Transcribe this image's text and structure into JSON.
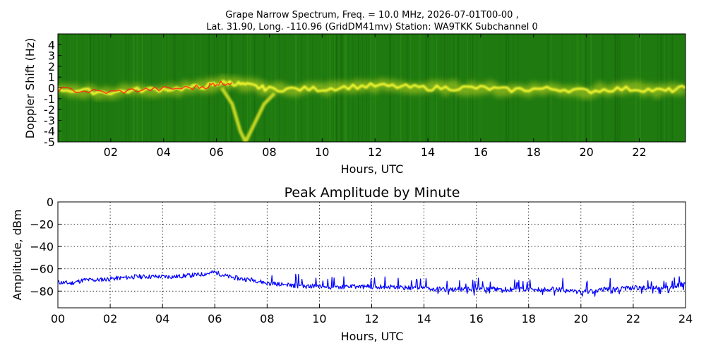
{
  "chart_data": [
    {
      "type": "heatmap",
      "title_line1": "Grape Narrow Spectrum, Freq. = 10.0 MHz, 2026-07-01T00-00 ,",
      "title_line2": "Lat.  31.90, Long. -110.96 (GridDM41mv) Station: WA9TKK Subchannel 0",
      "xlabel": "Hours, UTC",
      "ylabel": "Doppler Shift (Hz)",
      "xlim": [
        0,
        23.75
      ],
      "ylim": [
        -5,
        5
      ],
      "x_ticks": [
        "02",
        "04",
        "06",
        "08",
        "10",
        "12",
        "14",
        "16",
        "18",
        "20",
        "22"
      ],
      "y_ticks": [
        "-5",
        "-4",
        "-3",
        "-2",
        "-1",
        "0",
        "1",
        "2",
        "3",
        "4"
      ],
      "colors": {
        "background": "#1f7a10",
        "low": "#2e8f16",
        "mid": "#c8d820",
        "high": "#ffff30",
        "peak": "#ff2010"
      },
      "trace": [
        [
          0.0,
          -0.1
        ],
        [
          1.0,
          -0.3
        ],
        [
          2.0,
          -0.4
        ],
        [
          3.0,
          -0.2
        ],
        [
          4.0,
          -0.1
        ],
        [
          5.0,
          0.0
        ],
        [
          5.7,
          0.2
        ],
        [
          6.0,
          0.4
        ],
        [
          6.5,
          0.5
        ],
        [
          7.0,
          0.3
        ],
        [
          7.5,
          0.1
        ],
        [
          8.0,
          -0.1
        ],
        [
          9.0,
          -0.1
        ],
        [
          10.0,
          -0.1
        ],
        [
          11.0,
          0.1
        ],
        [
          12.0,
          0.2
        ],
        [
          13.0,
          0.1
        ],
        [
          14.0,
          0.0
        ],
        [
          15.0,
          0.0
        ],
        [
          16.0,
          0.0
        ],
        [
          17.0,
          -0.2
        ],
        [
          18.0,
          -0.1
        ],
        [
          19.0,
          -0.1
        ],
        [
          20.0,
          -0.3
        ],
        [
          21.0,
          -0.1
        ],
        [
          22.0,
          -0.1
        ],
        [
          23.0,
          -0.3
        ],
        [
          23.75,
          0.0
        ]
      ],
      "dip": [
        [
          6.2,
          0.0
        ],
        [
          6.6,
          -1.5
        ],
        [
          6.9,
          -4.0
        ],
        [
          7.1,
          -5.0
        ],
        [
          7.4,
          -3.5
        ],
        [
          7.8,
          -1.5
        ],
        [
          8.2,
          -0.5
        ]
      ]
    },
    {
      "type": "line",
      "title": "Peak Amplitude by Minute",
      "xlabel": "Hours, UTC",
      "ylabel": "Amplitude, dBm",
      "xlim": [
        0,
        24
      ],
      "ylim": [
        -95,
        0
      ],
      "grid": true,
      "x_ticks": [
        "00",
        "02",
        "04",
        "06",
        "08",
        "10",
        "12",
        "14",
        "16",
        "18",
        "20",
        "22",
        "24"
      ],
      "y_ticks": [
        "0",
        "−20",
        "−40",
        "−60",
        "−80"
      ],
      "series": [
        {
          "color": "#0000ff",
          "x": [
            0,
            0.5,
            1,
            1.5,
            2,
            2.5,
            3,
            3.5,
            4,
            4.5,
            5,
            5.5,
            6,
            6.5,
            7,
            7.5,
            8,
            8.5,
            9,
            9.5,
            10,
            10.5,
            11,
            11.5,
            12,
            12.5,
            13,
            13.5,
            14,
            14.5,
            15,
            15.5,
            16,
            16.5,
            17,
            17.5,
            18,
            18.5,
            19,
            19.5,
            20,
            20.5,
            21,
            21.5,
            22,
            22.5,
            23,
            23.5,
            24
          ],
          "y": [
            -72,
            -73,
            -70,
            -70,
            -69,
            -68,
            -67,
            -67,
            -67,
            -67,
            -66,
            -65,
            -63,
            -67,
            -69,
            -70,
            -73,
            -74,
            -75,
            -76,
            -75,
            -77,
            -76,
            -76,
            -76,
            -76,
            -77,
            -77,
            -77,
            -78,
            -79,
            -78,
            -78,
            -78,
            -78,
            -79,
            -78,
            -79,
            -78,
            -80,
            -81,
            -80,
            -78,
            -78,
            -77,
            -77,
            -77,
            -77,
            -72
          ]
        }
      ]
    }
  ]
}
